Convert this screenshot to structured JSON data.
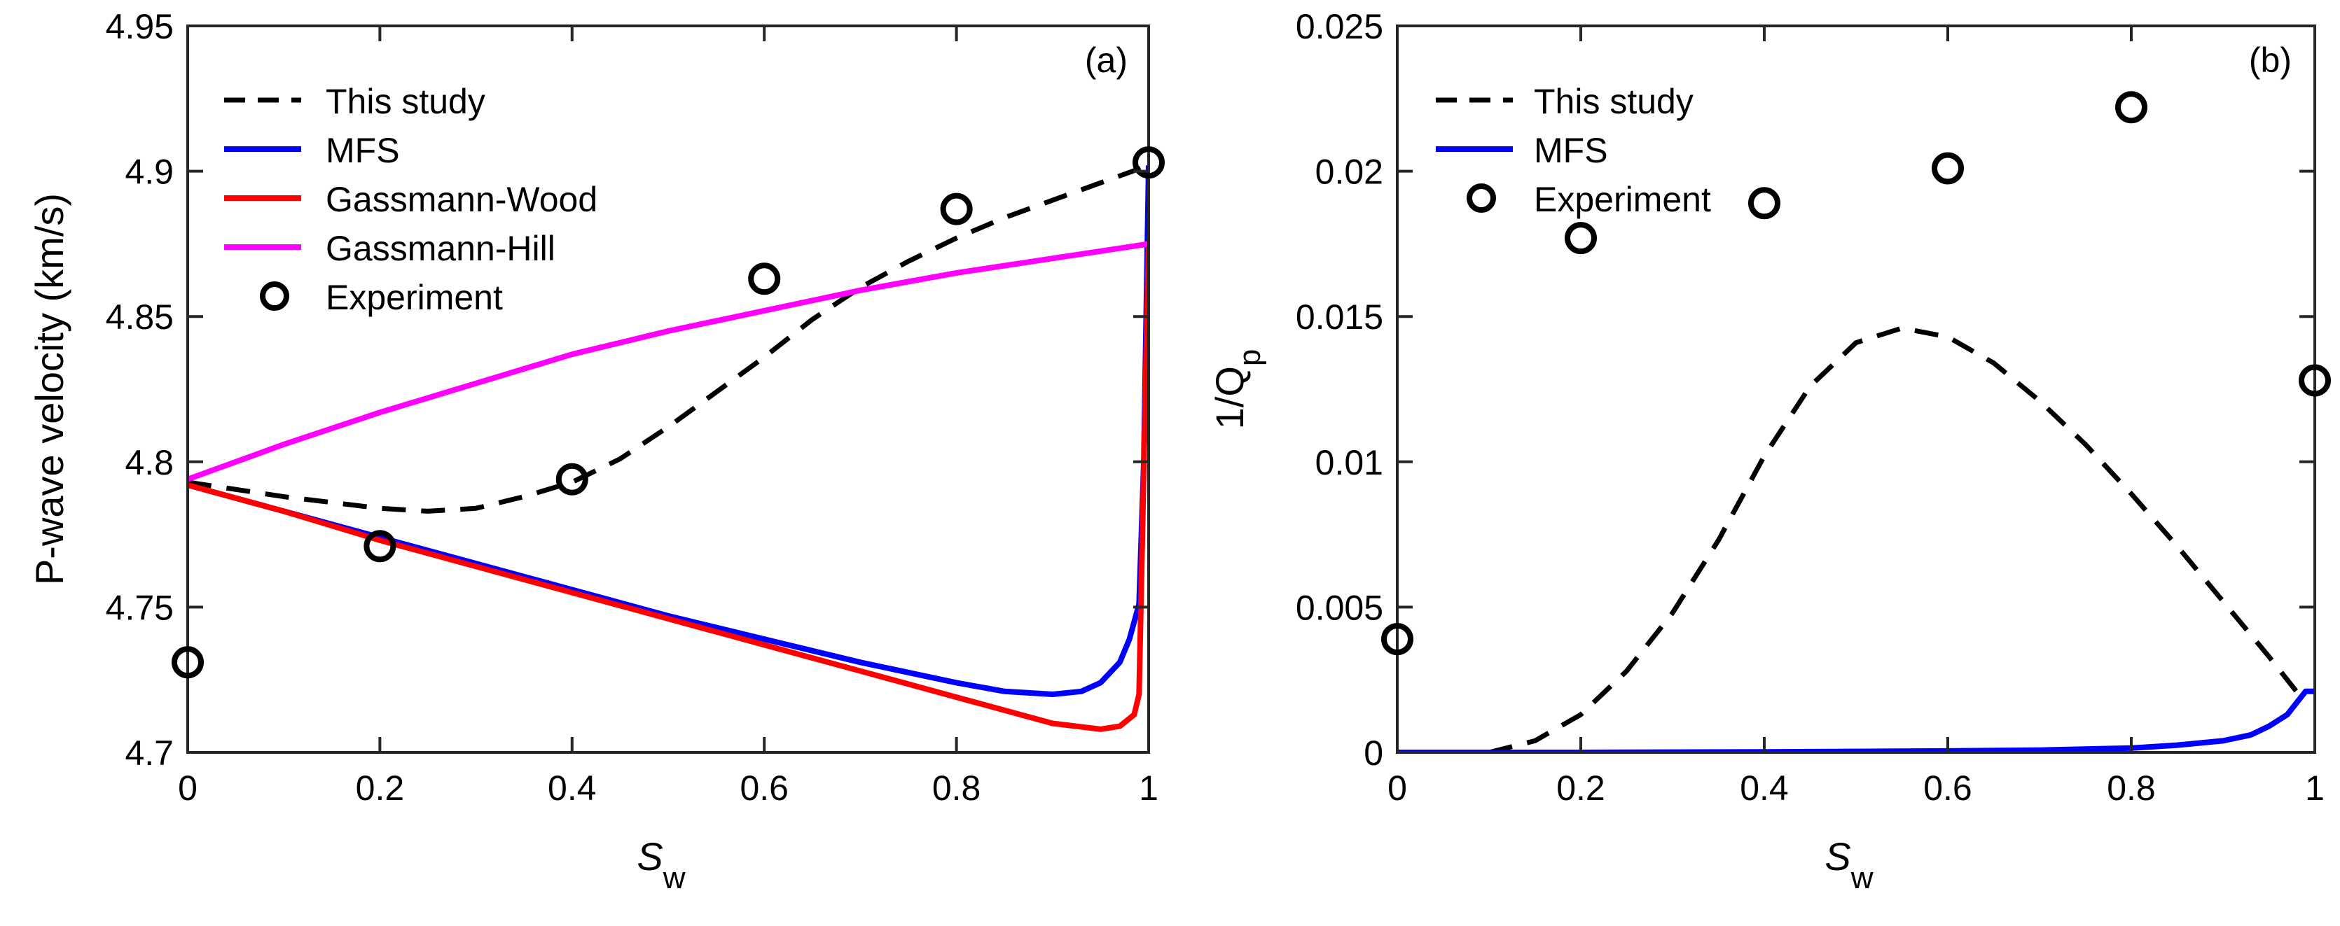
{
  "figure": {
    "background": "#ffffff"
  },
  "chart_data": [
    {
      "panel_tag": "(a)",
      "type": "line",
      "xlabel": "S",
      "xlabel_sub": "w",
      "ylabel": "P-wave velocity (km/s)",
      "xlim": [
        0,
        1
      ],
      "ylim": [
        4.7,
        4.95
      ],
      "x_ticks": [
        0,
        0.2,
        0.4,
        0.6,
        0.8,
        1
      ],
      "x_tick_labels": [
        "0",
        "0.2",
        "0.4",
        "0.6",
        "0.8",
        "1"
      ],
      "y_ticks": [
        4.7,
        4.75,
        4.8,
        4.85,
        4.9,
        4.95
      ],
      "y_tick_labels": [
        "4.7",
        "4.75",
        "4.8",
        "4.85",
        "4.9",
        "4.95"
      ],
      "grid": false,
      "legend_position": "top-left",
      "series": [
        {
          "name": "This study",
          "style": "dashed",
          "color": "#000000",
          "x": [
            0,
            0.1,
            0.2,
            0.25,
            0.3,
            0.35,
            0.4,
            0.45,
            0.5,
            0.55,
            0.6,
            0.65,
            0.7,
            0.75,
            0.8,
            0.85,
            0.9,
            0.95,
            1.0
          ],
          "y": [
            4.793,
            4.788,
            4.784,
            4.783,
            4.784,
            4.788,
            4.793,
            4.801,
            4.812,
            4.824,
            4.836,
            4.849,
            4.86,
            4.869,
            4.877,
            4.884,
            4.89,
            4.896,
            4.902
          ]
        },
        {
          "name": "MFS",
          "style": "solid",
          "color": "#0000ff",
          "x": [
            0,
            0.1,
            0.2,
            0.3,
            0.4,
            0.5,
            0.6,
            0.7,
            0.8,
            0.85,
            0.9,
            0.93,
            0.95,
            0.97,
            0.98,
            0.99,
            0.995,
            1.0
          ],
          "y": [
            4.792,
            4.783,
            4.774,
            4.765,
            4.756,
            4.747,
            4.739,
            4.731,
            4.724,
            4.721,
            4.72,
            4.721,
            4.724,
            4.731,
            4.739,
            4.751,
            4.8,
            4.902
          ]
        },
        {
          "name": "Gassmann-Wood",
          "style": "solid",
          "color": "#ff0000",
          "x": [
            0,
            0.1,
            0.2,
            0.3,
            0.4,
            0.5,
            0.6,
            0.7,
            0.8,
            0.9,
            0.95,
            0.97,
            0.985,
            0.99,
            1.0
          ],
          "y": [
            4.792,
            4.783,
            4.773,
            4.764,
            4.755,
            4.746,
            4.737,
            4.728,
            4.719,
            4.71,
            4.708,
            4.709,
            4.713,
            4.72,
            4.876
          ]
        },
        {
          "name": "Gassmann-Hill",
          "style": "solid",
          "color": "#ff00ff",
          "x": [
            0,
            0.1,
            0.2,
            0.3,
            0.4,
            0.5,
            0.6,
            0.7,
            0.8,
            0.9,
            1.0
          ],
          "y": [
            4.794,
            4.806,
            4.817,
            4.827,
            4.837,
            4.845,
            4.852,
            4.859,
            4.865,
            4.87,
            4.875
          ]
        },
        {
          "name": "Experiment",
          "style": "markers",
          "marker": "circle",
          "color": "#000000",
          "x": [
            0,
            0.2,
            0.4,
            0.6,
            0.8,
            1.0
          ],
          "y": [
            4.731,
            4.771,
            4.794,
            4.863,
            4.887,
            4.903
          ]
        }
      ]
    },
    {
      "panel_tag": "(b)",
      "type": "line",
      "xlabel": "S",
      "xlabel_sub": "w",
      "ylabel": "1/Q",
      "ylabel_sub": "p",
      "xlim": [
        0,
        1
      ],
      "ylim": [
        0,
        0.025
      ],
      "x_ticks": [
        0,
        0.2,
        0.4,
        0.6,
        0.8,
        1
      ],
      "x_tick_labels": [
        "0",
        "0.2",
        "0.4",
        "0.6",
        "0.8",
        "1"
      ],
      "y_ticks": [
        0,
        0.005,
        0.01,
        0.015,
        0.02,
        0.025
      ],
      "y_tick_labels": [
        "0",
        "0.005",
        "0.01",
        "0.015",
        "0.02",
        "0.025"
      ],
      "grid": false,
      "legend_position": "top-left",
      "series": [
        {
          "name": "This study",
          "style": "dashed",
          "color": "#000000",
          "x": [
            0.1,
            0.15,
            0.2,
            0.25,
            0.3,
            0.35,
            0.4,
            0.45,
            0.5,
            0.55,
            0.6,
            0.65,
            0.7,
            0.75,
            0.8,
            0.85,
            0.9,
            0.95,
            0.98
          ],
          "y": [
            0.0,
            0.0004,
            0.0013,
            0.0028,
            0.0048,
            0.0073,
            0.0102,
            0.0126,
            0.0141,
            0.0146,
            0.0143,
            0.0134,
            0.0121,
            0.0106,
            0.0089,
            0.0071,
            0.0052,
            0.0033,
            0.0021
          ]
        },
        {
          "name": "MFS",
          "style": "solid",
          "color": "#0000ff",
          "x": [
            0,
            0.2,
            0.4,
            0.6,
            0.7,
            0.8,
            0.85,
            0.9,
            0.93,
            0.95,
            0.97,
            0.98,
            0.99,
            1.0
          ],
          "y": [
            0.0,
            0.0,
            2e-05,
            5e-05,
            8e-05,
            0.00015,
            0.00025,
            0.0004,
            0.0006,
            0.0009,
            0.0013,
            0.0017,
            0.0021,
            0.0021
          ]
        },
        {
          "name": "Experiment",
          "style": "markers",
          "marker": "circle",
          "color": "#000000",
          "x": [
            0,
            0.2,
            0.4,
            0.6,
            0.8,
            1.0
          ],
          "y": [
            0.0039,
            0.0177,
            0.0189,
            0.0201,
            0.0222,
            0.0128
          ]
        }
      ]
    }
  ]
}
